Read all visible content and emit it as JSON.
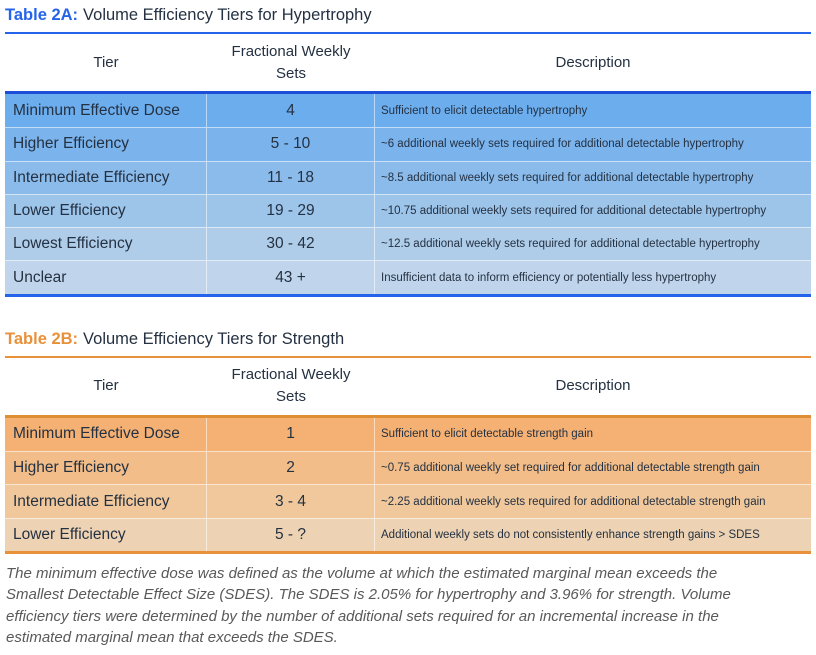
{
  "tables": [
    {
      "name": "Table 2A",
      "title_prefix": "Table 2A:",
      "title_rest": "Volume Efficiency Tiers for Hypertrophy",
      "accent": "#2563eb",
      "separator_color": "#1d4ed8",
      "columns": [
        "Tier",
        "Fractional Weekly Sets",
        "Description"
      ],
      "rows": [
        {
          "tier": "Minimum Effective Dose",
          "sets": "4",
          "description": "Sufficient to elicit detectable hypertrophy",
          "bg": "#6cadee"
        },
        {
          "tier": "Higher Efficiency",
          "sets": "5 - 10",
          "description": "~6 additional weekly sets required for additional detectable hypertrophy",
          "bg": "#7bb3ec"
        },
        {
          "tier": "Intermediate Efficiency",
          "sets": "11 - 18",
          "description": "~8.5 additional weekly sets required for additional detectable hypertrophy",
          "bg": "#8bbbea"
        },
        {
          "tier": "Lower Efficiency",
          "sets": "19 - 29",
          "description": "~10.75 additional weekly sets required for additional detectable hypertrophy",
          "bg": "#9dc4e9"
        },
        {
          "tier": "Lowest Efficiency",
          "sets": "30 - 42",
          "description": "~12.5 additional weekly sets required for additional detectable hypertrophy",
          "bg": "#afcde9"
        },
        {
          "tier": "Unclear",
          "sets": "43 +",
          "description": "Insufficient data to inform efficiency or potentially less hypertrophy",
          "bg": "#c0d5eb"
        }
      ]
    },
    {
      "name": "Table 2B",
      "title_prefix": "Table 2B:",
      "title_rest": "Volume Efficiency Tiers for Strength",
      "accent": "#e8913a",
      "separator_color": "#de8f35",
      "columns": [
        "Tier",
        "Fractional Weekly Sets",
        "Description"
      ],
      "rows": [
        {
          "tier": "Minimum Effective Dose",
          "sets": "1",
          "description": "Sufficient to elicit detectable strength gain",
          "bg": "#f4b173"
        },
        {
          "tier": "Higher Efficiency",
          "sets": "2",
          "description": "~0.75 additional weekly set required for additional detectable strength gain",
          "bg": "#f2bd88"
        },
        {
          "tier": "Intermediate Efficiency",
          "sets": "3 - 4",
          "description": "~2.25 additional weekly sets required for additional detectable strength gain",
          "bg": "#f0c89c"
        },
        {
          "tier": "Lower Efficiency",
          "sets": "5 - ?",
          "description": "Additional weekly sets do not consistently enhance strength gains > SDES",
          "bg": "#edd3b3"
        }
      ]
    }
  ],
  "footnote": "The minimum effective dose was defined as the volume at which the estimated marginal mean exceeds the Smallest Detectable Effect Size (SDES). The SDES is 2.05% for hypertrophy and 3.96% for strength. Volume efficiency tiers were determined by the number of additional sets required for an incremental increase in the estimated marginal mean that exceeds the SDES."
}
